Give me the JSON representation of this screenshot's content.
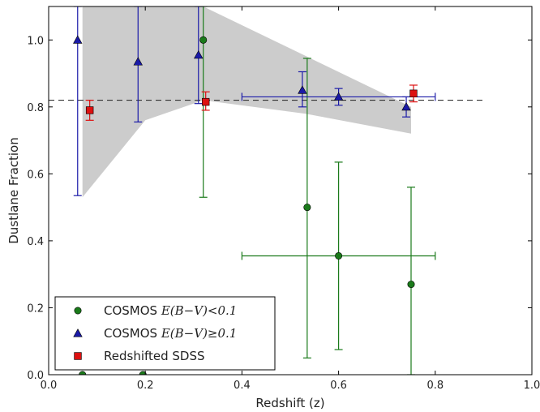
{
  "chart_data": {
    "type": "scatter",
    "xlabel": "Redshift (z)",
    "ylabel": "Dustlane Fraction",
    "xlim": [
      0.0,
      1.0
    ],
    "ylim": [
      0.0,
      1.1
    ],
    "x_ticks": [
      "0.0",
      "0.2",
      "0.4",
      "0.6",
      "0.8",
      "1.0"
    ],
    "y_ticks": [
      "0.0",
      "0.2",
      "0.4",
      "0.6",
      "0.8",
      "1.0"
    ],
    "x_tick_values": [
      0.0,
      0.2,
      0.4,
      0.6,
      0.8,
      1.0
    ],
    "y_tick_values": [
      0.0,
      0.2,
      0.4,
      0.6,
      0.8,
      1.0
    ],
    "grid": false,
    "legend_position": "bottom-left",
    "reference_line": {
      "y": 0.82,
      "x_range": [
        0.0,
        0.9
      ],
      "style": "dashed",
      "color": "#333333"
    },
    "band": {
      "color": "#cccccc",
      "upper": [
        [
          0.07,
          1.1
        ],
        [
          0.32,
          1.1
        ],
        [
          0.75,
          0.8
        ]
      ],
      "lower": [
        [
          0.07,
          0.53
        ],
        [
          0.2,
          0.76
        ],
        [
          0.32,
          0.82
        ],
        [
          0.53,
          0.78
        ],
        [
          0.75,
          0.72
        ]
      ]
    },
    "series": [
      {
        "legend_prefix": "COSMOS ",
        "legend_math": "E(B−V)<0.1",
        "marker": "circle",
        "color": "#1a7a1a",
        "points": [
          {
            "x": 0.07,
            "y": 0.0
          },
          {
            "x": 0.195,
            "y": 0.0
          },
          {
            "x": 0.32,
            "y": 1.0,
            "ylo": 0.53,
            "yhi": 1.1
          },
          {
            "x": 0.535,
            "y": 0.5,
            "ylo": 0.05,
            "yhi": 0.945
          },
          {
            "x": 0.6,
            "y": 0.355,
            "ylo": 0.075,
            "yhi": 0.635,
            "xlo": 0.4,
            "xhi": 0.8
          },
          {
            "x": 0.75,
            "y": 0.27,
            "ylo": 0.0,
            "yhi": 0.56
          }
        ]
      },
      {
        "legend_prefix": "COSMOS ",
        "legend_math": "E(B−V)≥0.1",
        "marker": "triangle",
        "color": "#1a1aa8",
        "points": [
          {
            "x": 0.06,
            "y": 1.0,
            "ylo": 0.535,
            "yhi": 1.1
          },
          {
            "x": 0.185,
            "y": 0.935,
            "ylo": 0.755,
            "yhi": 1.1
          },
          {
            "x": 0.31,
            "y": 0.955,
            "ylo": 0.81,
            "yhi": 1.1
          },
          {
            "x": 0.525,
            "y": 0.85,
            "ylo": 0.8,
            "yhi": 0.905
          },
          {
            "x": 0.6,
            "y": 0.83,
            "ylo": 0.805,
            "yhi": 0.855,
            "xlo": 0.4,
            "xhi": 0.8
          },
          {
            "x": 0.74,
            "y": 0.8,
            "ylo": 0.77,
            "yhi": 0.83
          }
        ]
      },
      {
        "legend_prefix": "Redshifted SDSS",
        "legend_math": "",
        "marker": "square",
        "color": "#dd1111",
        "points": [
          {
            "x": 0.085,
            "y": 0.79,
            "ylo": 0.76,
            "yhi": 0.82
          },
          {
            "x": 0.325,
            "y": 0.815,
            "ylo": 0.79,
            "yhi": 0.845
          },
          {
            "x": 0.755,
            "y": 0.84,
            "ylo": 0.815,
            "yhi": 0.865
          }
        ]
      }
    ]
  }
}
